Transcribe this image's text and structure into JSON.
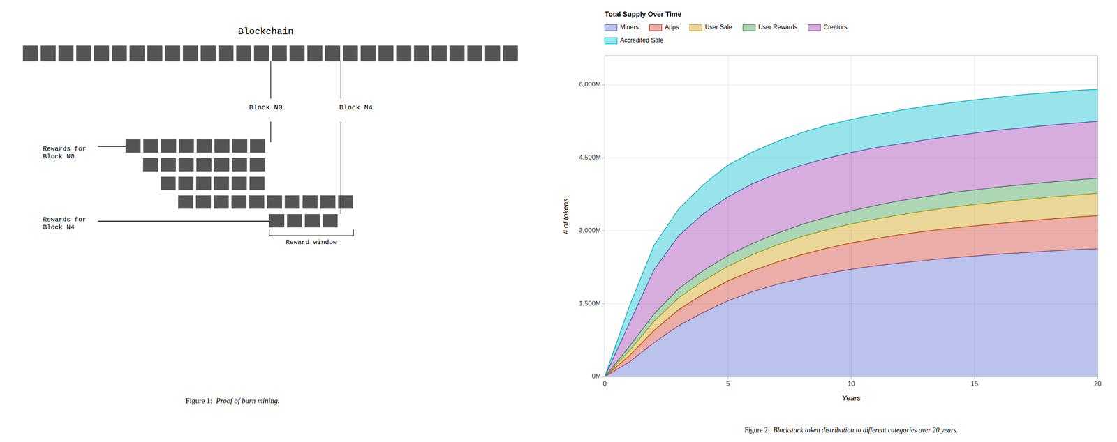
{
  "chart_data": [
    {
      "type": "diagram",
      "title": "Blockchain",
      "color": "#555555",
      "annotations": [
        "Block N0",
        "Block N4",
        "Rewards for\nBlock N0",
        "Rewards for\nBlock N4",
        "Reward window",
        "Figure 1:",
        "  Proof of burn mining."
      ]
    },
    {
      "type": "area",
      "stacked": true,
      "title": "Total Supply Over Time",
      "x_label": "Years",
      "y_label": "# of tokens",
      "annotations": [
        "Figure 2:",
        "  Blockstack token distribution to different categories over 20 years."
      ],
      "x": [
        0,
        1,
        2,
        3,
        4,
        5,
        6,
        7,
        8,
        9,
        10,
        11,
        12,
        13,
        14,
        15,
        16,
        17,
        18,
        19,
        20
      ],
      "xlim": [
        0,
        20
      ],
      "ylim": [
        0,
        6600
      ],
      "xticks": [
        0,
        5,
        10,
        15,
        20
      ],
      "yticks": [
        {
          "value": 0,
          "label": "0M"
        },
        {
          "value": 1500,
          "label": "1,500M"
        },
        {
          "value": 3000,
          "label": "3,000M"
        },
        {
          "value": 4500,
          "label": "4,500M"
        },
        {
          "value": 6000,
          "label": "6,000M"
        }
      ],
      "grid": true,
      "legend": "upper left",
      "series": [
        {
          "name": "Miners",
          "color": "#5566cc",
          "values": [
            0,
            300,
            700,
            1050,
            1320,
            1560,
            1750,
            1900,
            2020,
            2120,
            2210,
            2280,
            2340,
            2390,
            2440,
            2480,
            2520,
            2550,
            2580,
            2610,
            2630
          ]
        },
        {
          "name": "Apps",
          "color": "#cc3322",
          "values": [
            0,
            130,
            250,
            330,
            380,
            410,
            430,
            460,
            490,
            520,
            540,
            560,
            580,
            600,
            610,
            620,
            630,
            650,
            660,
            670,
            680
          ]
        },
        {
          "name": "User Sale",
          "color": "#cc9900",
          "values": [
            0,
            100,
            190,
            240,
            270,
            300,
            330,
            350,
            370,
            380,
            390,
            400,
            410,
            420,
            430,
            440,
            440,
            440,
            450,
            450,
            460
          ]
        },
        {
          "name": "User Rewards",
          "color": "#339944",
          "values": [
            0,
            90,
            150,
            190,
            210,
            220,
            230,
            240,
            250,
            260,
            270,
            280,
            290,
            290,
            300,
            300,
            310,
            310,
            310,
            310,
            310
          ]
        },
        {
          "name": "Creators",
          "color": "#9933aa",
          "values": [
            0,
            480,
            910,
            1090,
            1170,
            1210,
            1230,
            1230,
            1220,
            1210,
            1200,
            1190,
            1170,
            1170,
            1160,
            1170,
            1170,
            1170,
            1170,
            1170,
            1170
          ]
        },
        {
          "name": "Accredited Sale",
          "color": "#00bbcc",
          "values": [
            0,
            350,
            500,
            550,
            600,
            650,
            650,
            660,
            670,
            680,
            680,
            680,
            690,
            690,
            690,
            680,
            680,
            680,
            670,
            670,
            660
          ]
        }
      ]
    }
  ]
}
